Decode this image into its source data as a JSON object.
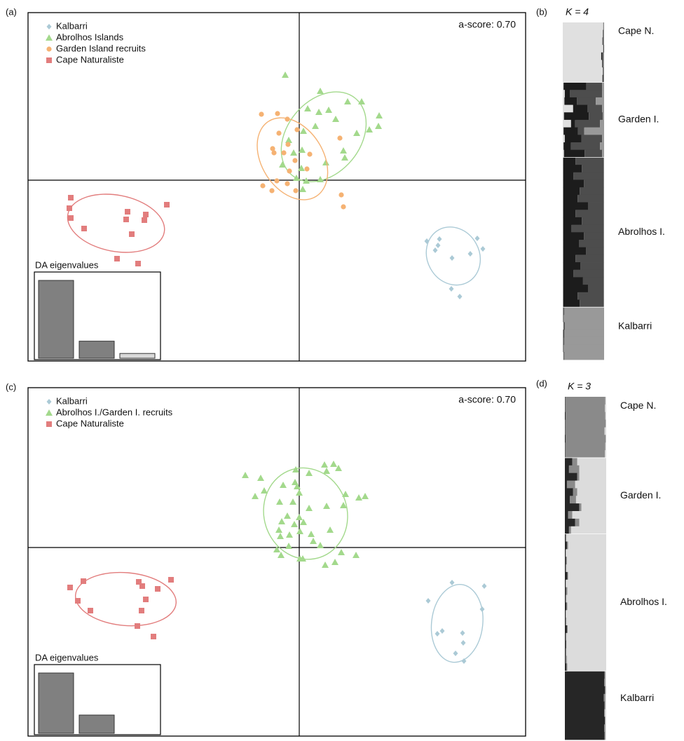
{
  "chart_data": [
    {
      "type": "scatter",
      "panel": "(a)",
      "annotation": "a-score: 0.70",
      "xlim": [
        -38.7,
        32.3
      ],
      "ylim": [
        -25.8,
        23.9
      ],
      "series": [
        {
          "name": "Kalbarri",
          "color": "#abcad6",
          "marker": "diamond",
          "x": [
            18.2,
            20.0,
            25.4,
            26.2,
            19.8,
            19.4,
            21.8,
            24.4,
            21.7,
            22.9
          ],
          "values": [
            -8.7,
            -8.4,
            -8.3,
            -9.8,
            -9.3,
            -10.0,
            -11.1,
            -10.5,
            -15.5,
            -16.6
          ]
        },
        {
          "name": "Abrolhos Islands",
          "color": "#a3d98c",
          "marker": "triangle",
          "x": [
            -2.0,
            3.0,
            1.2,
            4.2,
            6.9,
            8.9,
            2.8,
            5.2,
            11.4,
            11.3,
            10.0,
            8.2,
            0.6,
            -1.5,
            0.4,
            -0.8,
            6.3,
            6.5,
            3.8,
            -2.4,
            0.3,
            -0.4,
            3.0,
            1.0,
            0.5,
            2.3
          ],
          "values": [
            15.0,
            12.7,
            10.2,
            10.0,
            11.2,
            11.2,
            9.7,
            8.7,
            9.2,
            7.7,
            7.2,
            6.7,
            7.0,
            5.7,
            4.3,
            3.9,
            4.2,
            3.2,
            2.5,
            2.2,
            1.7,
            0.3,
            0.1,
            -0.1,
            -1.3,
            7.7
          ]
        },
        {
          "name": "Garden Island recruits",
          "color": "#f5b273",
          "marker": "circle",
          "x": [
            -5.4,
            -3.1,
            -1.7,
            -2.9,
            -3.8,
            -3.6,
            -1.6,
            -0.3,
            -2.2,
            -0.6,
            1.5,
            -1.4,
            -1.7,
            -3.2,
            -5.2,
            -3.9,
            -0.5,
            1.1,
            5.8,
            6.0,
            6.3
          ],
          "values": [
            9.4,
            9.5,
            8.7,
            6.7,
            4.5,
            3.9,
            5.1,
            7.2,
            3.9,
            2.8,
            3.7,
            1.3,
            -0.5,
            -0.1,
            -0.8,
            -1.5,
            -1.5,
            1.6,
            6.0,
            -2.1,
            -3.8
          ]
        },
        {
          "name": "Cape Naturaliste",
          "color": "#e27d7d",
          "marker": "square",
          "x": [
            -32.6,
            -32.8,
            -32.6,
            -24.5,
            -21.9,
            -18.9,
            -22.1,
            -30.7,
            -24.7,
            -23.9,
            -26.0,
            -23.0
          ],
          "values": [
            -2.5,
            -4.0,
            -5.4,
            -4.5,
            -4.9,
            -3.5,
            -5.7,
            -6.9,
            -5.6,
            -7.7,
            -11.2,
            -11.9
          ]
        }
      ],
      "inset": {
        "title": "DA eigenvalues",
        "values": [
          114,
          25,
          7
        ],
        "colors": [
          "#808080",
          "#808080",
          "#d9d9d9"
        ]
      }
    },
    {
      "type": "structure",
      "panel": "(b)",
      "title": "K = 4",
      "colors": [
        "#e0e0e0",
        "#1c1c1c",
        "#4d4d4d",
        "#999999"
      ],
      "groups": [
        {
          "label": "Cape N.",
          "rows": [
            [
              0.98,
              0,
              0.01,
              0.01
            ],
            [
              0.97,
              0.01,
              0.01,
              0.01
            ],
            [
              0.96,
              0.01,
              0.02,
              0.01
            ],
            [
              0.98,
              0.01,
              0.01,
              0
            ],
            [
              0.93,
              0.02,
              0.03,
              0.02
            ],
            [
              0.95,
              0.01,
              0.02,
              0.02
            ],
            [
              0.97,
              0.01,
              0.01,
              0.01
            ],
            [
              0.96,
              0.02,
              0.01,
              0.01
            ]
          ]
        },
        {
          "label": "Garden I.",
          "rows": [
            [
              0.02,
              0.55,
              0.38,
              0.05
            ],
            [
              0.05,
              0.12,
              0.78,
              0.05
            ],
            [
              0.04,
              0.3,
              0.46,
              0.2
            ],
            [
              0.25,
              0.35,
              0.35,
              0.05
            ],
            [
              0.03,
              0.6,
              0.34,
              0.03
            ],
            [
              0.2,
              0.1,
              0.6,
              0.1
            ],
            [
              0.02,
              0.35,
              0.15,
              0.48
            ],
            [
              0.05,
              0.4,
              0.5,
              0.05
            ],
            [
              0.02,
              0.18,
              0.7,
              0.1
            ],
            [
              0.03,
              0.5,
              0.42,
              0.05
            ]
          ]
        },
        {
          "label": "Abrolhos I.",
          "rows": [
            [
              0.01,
              0.3,
              0.68,
              0.01
            ],
            [
              0.01,
              0.45,
              0.53,
              0.01
            ],
            [
              0.01,
              0.25,
              0.73,
              0.01
            ],
            [
              0.01,
              0.5,
              0.48,
              0.01
            ],
            [
              0.01,
              0.4,
              0.58,
              0.01
            ],
            [
              0.01,
              0.35,
              0.63,
              0.01
            ],
            [
              0.01,
              0.6,
              0.38,
              0.01
            ],
            [
              0.01,
              0.3,
              0.68,
              0.01
            ],
            [
              0.01,
              0.45,
              0.53,
              0.01
            ],
            [
              0.01,
              0.2,
              0.78,
              0.01
            ],
            [
              0.01,
              0.5,
              0.48,
              0.01
            ],
            [
              0.01,
              0.38,
              0.6,
              0.01
            ],
            [
              0.01,
              0.55,
              0.43,
              0.01
            ],
            [
              0.01,
              0.3,
              0.68,
              0.01
            ],
            [
              0.01,
              0.42,
              0.56,
              0.01
            ],
            [
              0.01,
              0.25,
              0.73,
              0.01
            ],
            [
              0.01,
              0.48,
              0.5,
              0.01
            ],
            [
              0.01,
              0.6,
              0.38,
              0.01
            ],
            [
              0.01,
              0.35,
              0.63,
              0.01
            ],
            [
              0.01,
              0.4,
              0.58,
              0.01
            ]
          ]
        },
        {
          "label": "Kalbarri",
          "rows": [
            [
              0.01,
              0.01,
              0.02,
              0.96
            ],
            [
              0.01,
              0.01,
              0.01,
              0.97
            ],
            [
              0.02,
              0.01,
              0.02,
              0.95
            ],
            [
              0.01,
              0.02,
              0.01,
              0.96
            ],
            [
              0.01,
              0.01,
              0.02,
              0.96
            ],
            [
              0.01,
              0.01,
              0.01,
              0.97
            ],
            [
              0.02,
              0.01,
              0.01,
              0.96
            ]
          ]
        }
      ]
    },
    {
      "type": "scatter",
      "panel": "(c)",
      "annotation": "a-score: 0.70",
      "xlim": [
        -38.7,
        32.3
      ],
      "ylim": [
        -26.9,
        22.8
      ],
      "series": [
        {
          "name": "Kalbarri",
          "color": "#abcad6",
          "marker": "diamond",
          "x": [
            18.4,
            21.8,
            26.4,
            26.1,
            20.4,
            19.7,
            23.3,
            23.4,
            22.3,
            23.5
          ],
          "values": [
            -7.6,
            -5.0,
            -5.5,
            -8.8,
            -11.9,
            -12.3,
            -12.2,
            -13.6,
            -15.1,
            -16.2
          ]
        },
        {
          "name": "Abrolhos I./Garden I. recruits",
          "color": "#a3d98c",
          "marker": "triangle",
          "x": [
            -7.7,
            -5.5,
            -5.0,
            -6.3,
            -0.5,
            3.6,
            4.9,
            5.6,
            3.9,
            1.4,
            -0.6,
            -0.3,
            -2.3,
            0.0,
            -2.8,
            -0.9,
            6.6,
            8.5,
            9.4,
            3.9,
            6.3,
            1.4,
            -1.7,
            0.0,
            -2.5,
            -0.7,
            0.6,
            -2.9,
            -2.7,
            -1.4,
            0.1,
            1.7,
            4.4,
            2.0,
            3.0,
            -1.5,
            -3.2,
            -2.6,
            0.1,
            0.5,
            6.0,
            8.1,
            3.7,
            5.1
          ],
          "values": [
            10.3,
            9.9,
            8.1,
            7.3,
            11.1,
            11.8,
            11.9,
            11.3,
            10.9,
            10.6,
            9.3,
            8.7,
            8.9,
            7.8,
            6.5,
            6.5,
            7.6,
            7.1,
            7.3,
            5.9,
            6.0,
            5.6,
            4.5,
            4.3,
            3.7,
            3.3,
            3.6,
            2.5,
            1.6,
            1.8,
            2.3,
            1.9,
            2.5,
            0.9,
            0.3,
            0.2,
            -0.3,
            -1.1,
            -1.6,
            -1.6,
            -0.7,
            -1.1,
            -2.5,
            -2.1
          ]
        },
        {
          "name": "Cape Naturaliste",
          "color": "#e27d7d",
          "marker": "square",
          "x": [
            -32.7,
            -30.8,
            -31.6,
            -29.8,
            -22.9,
            -22.4,
            -20.2,
            -18.3,
            -21.9,
            -22.5,
            -23.1,
            -20.8
          ],
          "values": [
            -5.7,
            -4.8,
            -7.6,
            -9.0,
            -4.9,
            -5.5,
            -5.9,
            -4.6,
            -7.4,
            -9.0,
            -11.2,
            -12.7
          ]
        }
      ],
      "inset": {
        "title": "DA eigenvalues",
        "values": [
          86,
          26
        ],
        "colors": [
          "#808080",
          "#808080"
        ]
      }
    },
    {
      "type": "structure",
      "panel": "(d)",
      "title": "K = 3",
      "colors": [
        "#262626",
        "#8a8a8a",
        "#dcdcdc"
      ],
      "groups": [
        {
          "label": "Cape N.",
          "rows": [
            [
              0.01,
              0.97,
              0.02
            ],
            [
              0.01,
              0.96,
              0.03
            ],
            [
              0.02,
              0.96,
              0.02
            ],
            [
              0.01,
              0.98,
              0.01
            ],
            [
              0.01,
              0.95,
              0.04
            ],
            [
              0.02,
              0.97,
              0.01
            ],
            [
              0.01,
              0.97,
              0.02
            ],
            [
              0.01,
              0.96,
              0.03
            ]
          ]
        },
        {
          "label": "Garden I.",
          "rows": [
            [
              0.18,
              0.12,
              0.7
            ],
            [
              0.1,
              0.25,
              0.65
            ],
            [
              0.3,
              0.05,
              0.65
            ],
            [
              0.05,
              0.2,
              0.75
            ],
            [
              0.2,
              0.1,
              0.7
            ],
            [
              0.12,
              0.15,
              0.73
            ],
            [
              0.35,
              0.05,
              0.6
            ],
            [
              0.08,
              0.1,
              0.82
            ],
            [
              0.25,
              0.1,
              0.65
            ],
            [
              0.1,
              0.05,
              0.85
            ]
          ]
        },
        {
          "label": "Abrolhos I.",
          "rows": [
            [
              0.02,
              0.02,
              0.96
            ],
            [
              0.05,
              0.03,
              0.92
            ],
            [
              0.02,
              0.01,
              0.97
            ],
            [
              0.03,
              0.02,
              0.95
            ],
            [
              0.02,
              0.02,
              0.96
            ],
            [
              0.06,
              0.02,
              0.92
            ],
            [
              0.02,
              0.01,
              0.97
            ],
            [
              0.03,
              0.03,
              0.94
            ],
            [
              0.02,
              0.02,
              0.96
            ],
            [
              0.04,
              0.02,
              0.94
            ],
            [
              0.02,
              0.01,
              0.97
            ],
            [
              0.02,
              0.02,
              0.96
            ],
            [
              0.05,
              0.02,
              0.93
            ],
            [
              0.02,
              0.02,
              0.96
            ],
            [
              0.03,
              0.01,
              0.96
            ],
            [
              0.02,
              0.02,
              0.96
            ],
            [
              0.02,
              0.03,
              0.95
            ],
            [
              0.04,
              0.02,
              0.94
            ]
          ]
        },
        {
          "label": "Kalbarri",
          "rows": [
            [
              0.96,
              0.02,
              0.02
            ],
            [
              0.95,
              0.03,
              0.02
            ],
            [
              0.97,
              0.02,
              0.01
            ],
            [
              0.94,
              0.04,
              0.02
            ],
            [
              0.96,
              0.02,
              0.02
            ],
            [
              0.95,
              0.02,
              0.03
            ],
            [
              0.97,
              0.01,
              0.02
            ],
            [
              0.95,
              0.03,
              0.02
            ],
            [
              0.96,
              0.02,
              0.02
            ]
          ]
        }
      ]
    }
  ]
}
